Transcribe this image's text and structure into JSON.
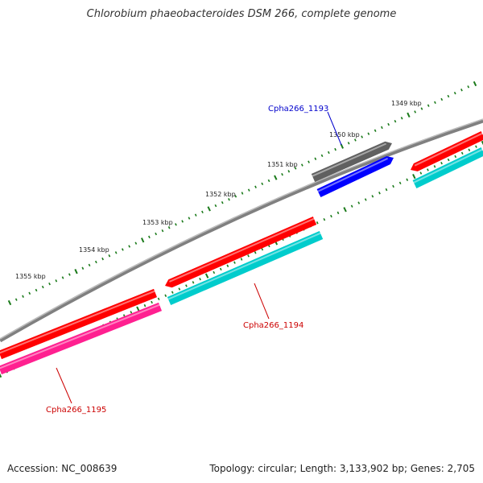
{
  "title": "Chlorobium phaeobacteroides DSM 266, complete genome",
  "footer": {
    "accession": "Accession: NC_008639",
    "topology": "Topology: circular; Length: 3,133,902 bp; Genes: 2,705"
  },
  "colors": {
    "backbone": "#808080",
    "tick": "#1a7a1a",
    "red": "#ff0000",
    "cyan": "#00cccc",
    "blue": "#0000ff",
    "gray_gene": "#606060",
    "pink": "#ff2090",
    "label_red": "#cc0000",
    "label_blue": "#0000cc"
  },
  "scale_labels": [
    "1349 kbp",
    "1350 kbp",
    "1351 kbp",
    "1352 kbp",
    "1353 kbp",
    "1354 kbp",
    "1355 kbp"
  ],
  "gene_labels": {
    "g1193": "Cpha266_1193",
    "g1194": "Cpha266_1194",
    "g1195": "Cpha266_1195"
  }
}
